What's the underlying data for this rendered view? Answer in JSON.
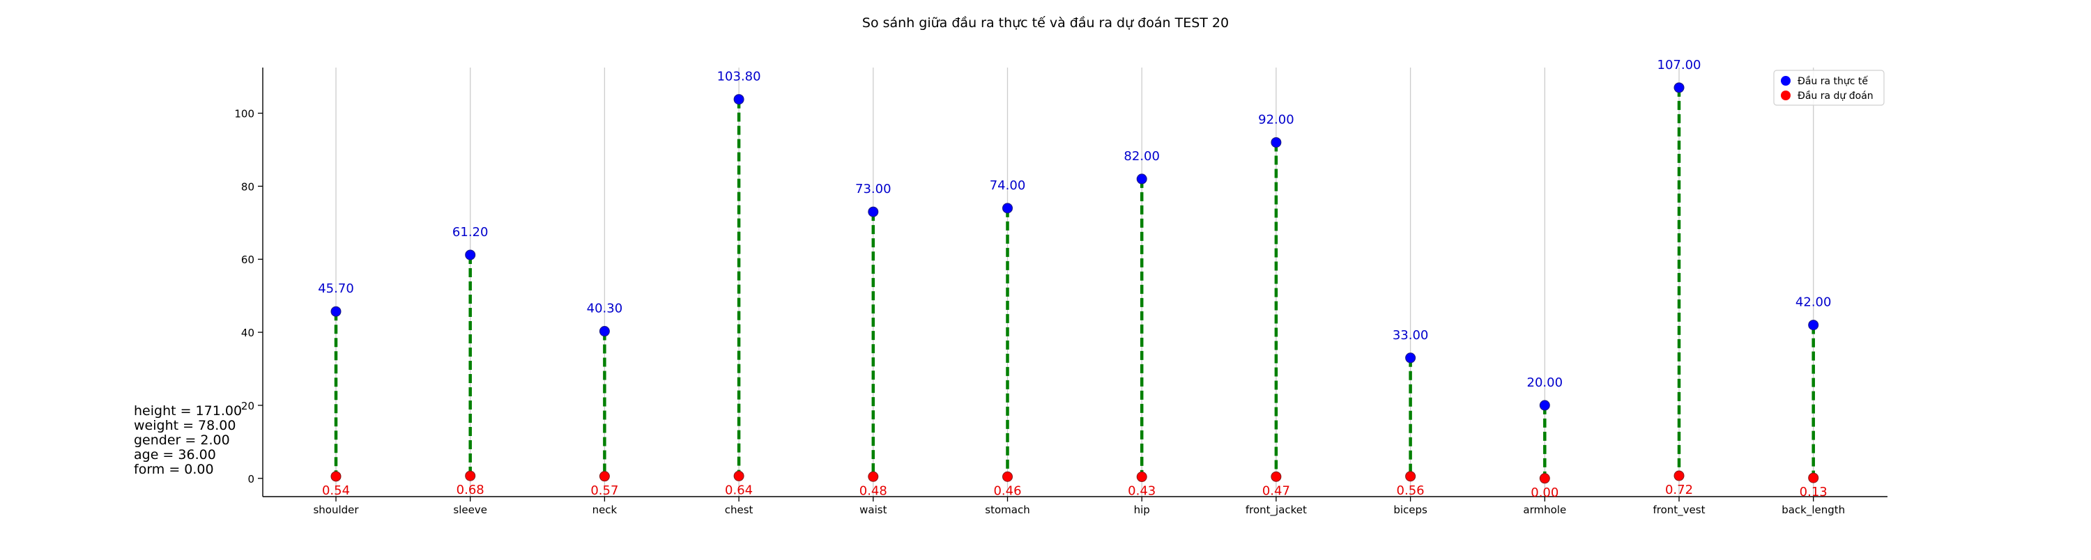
{
  "chart_data": {
    "type": "scatter",
    "title": "So sánh giữa đầu ra thực tế và đầu ra dự đoán TEST 20",
    "xlabel": "",
    "ylabel": "",
    "categories": [
      "shoulder",
      "sleeve",
      "neck",
      "chest",
      "waist",
      "stomach",
      "hip",
      "front_jacket",
      "biceps",
      "armhole",
      "front_vest",
      "back_length"
    ],
    "series": [
      {
        "name": "Đầu ra thực tế",
        "color": "#0000ff",
        "label_color": "#0000cc",
        "values": [
          45.7,
          61.2,
          40.3,
          103.8,
          73.0,
          74.0,
          82.0,
          92.0,
          33.0,
          20.0,
          107.0,
          42.0
        ]
      },
      {
        "name": "Đầu ra dự đoán",
        "color": "#ff0000",
        "label_color": "#e60000",
        "values": [
          0.54,
          0.68,
          0.57,
          0.64,
          0.48,
          0.46,
          0.43,
          0.47,
          0.56,
          0.0,
          0.72,
          0.13
        ]
      }
    ],
    "connector_color": "#008000",
    "ylim": [
      -5,
      112.5
    ],
    "yticks": [
      0,
      20,
      40,
      60,
      80,
      100
    ],
    "grid": "vertical",
    "legend": "top-right"
  },
  "inputs": [
    "height = 171.00",
    "weight = 78.00",
    "gender = 2.00",
    "age = 36.00",
    "form = 0.00"
  ]
}
